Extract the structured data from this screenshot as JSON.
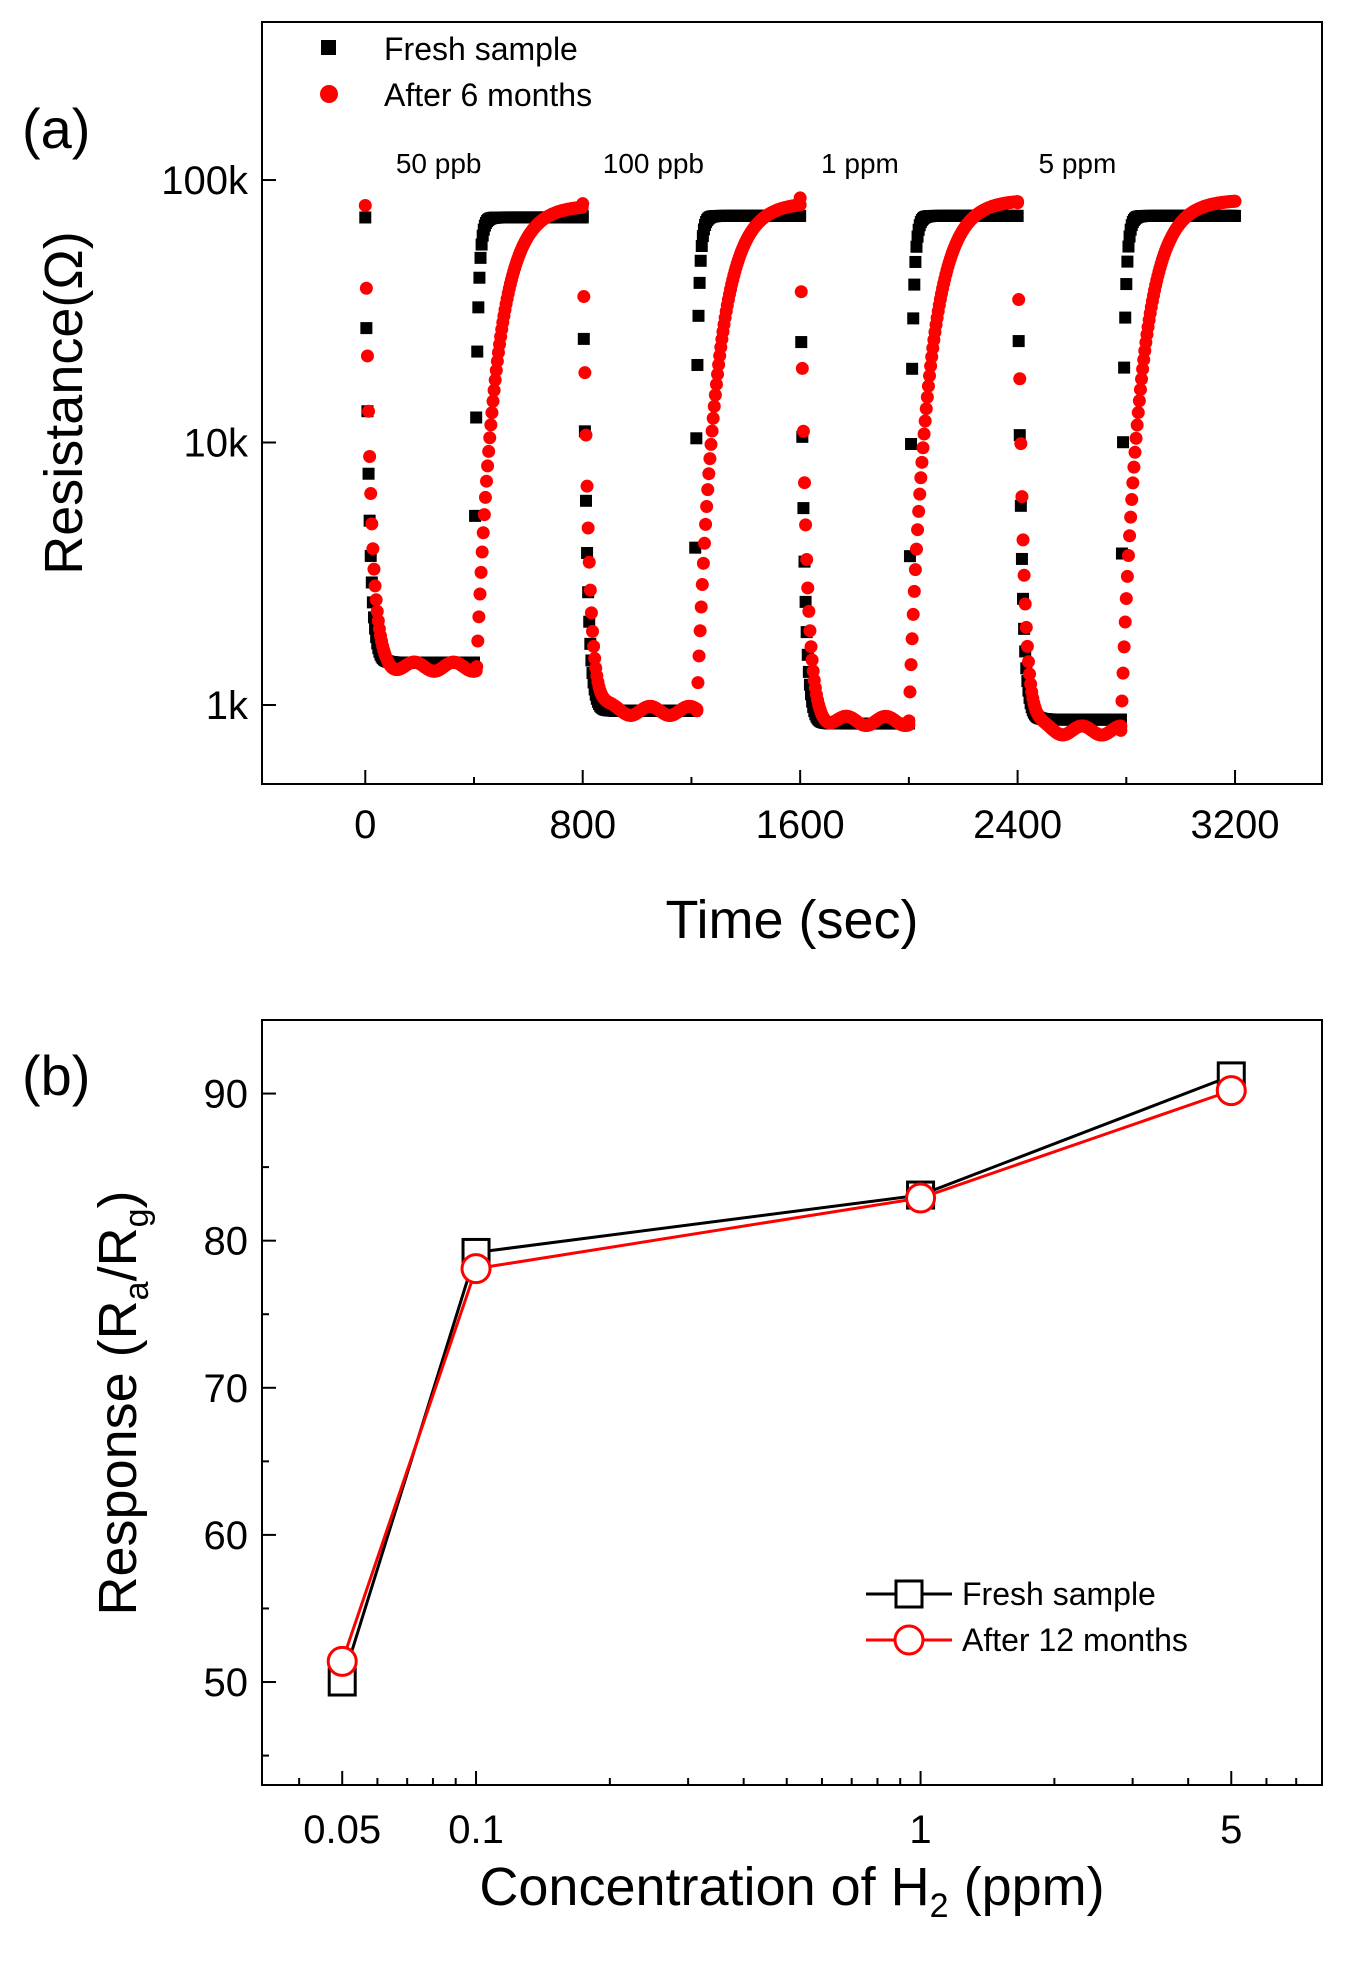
{
  "chart_data": [
    {
      "type": "scatter",
      "panel_label": "(a)",
      "xlabel": "Time (sec)",
      "ylabel": "Resistance(Ω)",
      "yscale": "log",
      "xlim": [
        -380,
        3520
      ],
      "ylim": [
        500,
        400000
      ],
      "x_ticks": [
        0,
        800,
        1600,
        2400,
        3200
      ],
      "x_tick_labels": [
        "0",
        "800",
        "1600",
        "2400",
        "3200"
      ],
      "y_ticks": [
        1000,
        10000,
        100000
      ],
      "y_tick_labels": [
        "1k",
        "10k",
        "100k"
      ],
      "annotations": [
        {
          "text": "50 ppb",
          "x": 270
        },
        {
          "text": "100 ppb",
          "x": 1060
        },
        {
          "text": "1 ppm",
          "x": 1820
        },
        {
          "text": "5 ppm",
          "x": 2620
        }
      ],
      "series": [
        {
          "name": "Fresh sample",
          "color": "#000000",
          "marker": "square",
          "cycles": [
            {
              "t_on": 0,
              "t_off": 400,
              "r_air": 72000,
              "r_gas": 1450
            },
            {
              "t_on": 800,
              "t_off": 1210,
              "r_air": 73000,
              "r_gas": 950
            },
            {
              "t_on": 1600,
              "t_off": 2000,
              "r_air": 73000,
              "r_gas": 850
            },
            {
              "t_on": 2400,
              "t_off": 2780,
              "r_air": 73000,
              "r_gas": 880
            },
            {
              "t_on": 3200,
              "t_off": 3200,
              "r_air": 73000,
              "r_gas": 73000
            }
          ]
        },
        {
          "name": "After 6 months",
          "color": "#ff0000",
          "marker": "circle",
          "cycles": [
            {
              "t_on": 0,
              "t_off": 410,
              "r_air": 80000,
              "r_gas": 1400
            },
            {
              "t_on": 800,
              "t_off": 1220,
              "r_air": 82000,
              "r_gas": 950
            },
            {
              "t_on": 1600,
              "t_off": 2000,
              "r_air": 84000,
              "r_gas": 870
            },
            {
              "t_on": 2400,
              "t_off": 2780,
              "r_air": 84000,
              "r_gas": 800
            },
            {
              "t_on": 3200,
              "t_off": 3200,
              "r_air": 84000,
              "r_gas": 84000
            }
          ]
        }
      ]
    },
    {
      "type": "line",
      "panel_label": "(b)",
      "xlabel_main": "Concentration of H",
      "xlabel_sub": "2",
      "xlabel_tail": " (ppm)",
      "ylabel_main": "Response (R",
      "ylabel_sub1": "a",
      "ylabel_mid": "/R",
      "ylabel_sub2": "g",
      "ylabel_tail": ")",
      "xscale": "log",
      "xlim": [
        0.033,
        8.0
      ],
      "ylim": [
        43,
        95
      ],
      "x_ticks": [
        0.05,
        0.1,
        1,
        5
      ],
      "x_tick_labels": [
        "0.05",
        "0.1",
        "1",
        "5"
      ],
      "y_ticks": [
        50,
        60,
        70,
        80,
        90
      ],
      "y_tick_labels": [
        "50",
        "60",
        "70",
        "80",
        "90"
      ],
      "series": [
        {
          "name": "Fresh sample",
          "color": "#000000",
          "marker": "open-square",
          "x": [
            0.05,
            0.1,
            1,
            5
          ],
          "values": [
            50.0,
            79.2,
            83.1,
            91.2
          ]
        },
        {
          "name": "After 12 months",
          "color": "#ff0000",
          "marker": "open-circle",
          "x": [
            0.05,
            0.1,
            1,
            5
          ],
          "values": [
            51.4,
            78.1,
            82.9,
            90.2
          ]
        }
      ]
    }
  ]
}
